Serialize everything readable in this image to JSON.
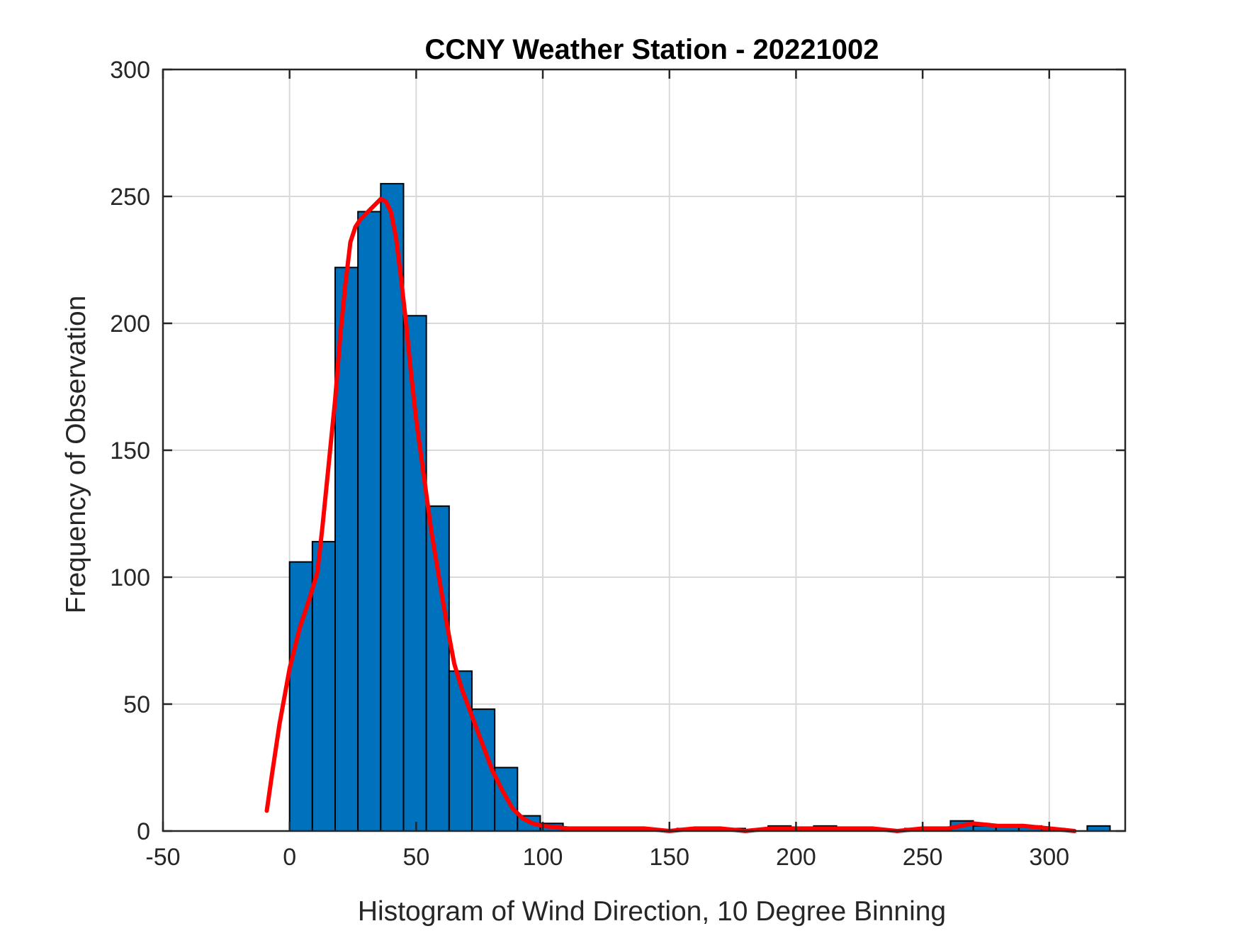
{
  "chart_data": {
    "type": "bar",
    "title": "CCNY Weather Station - 20221002",
    "xlabel": "Histogram of Wind Direction, 10 Degree Binning",
    "ylabel": "Frequency of Observation",
    "xlim": [
      -50,
      330
    ],
    "ylim": [
      0,
      300
    ],
    "xticks": [
      -50,
      0,
      50,
      100,
      150,
      200,
      250,
      300
    ],
    "yticks": [
      0,
      50,
      100,
      150,
      200,
      250,
      300
    ],
    "grid": true,
    "bar_color": "#0072BD",
    "bar_edge_color": "#000000",
    "line_color": "#FF0000",
    "bins": [
      {
        "x0": 0,
        "x1": 9,
        "count": 106
      },
      {
        "x0": 9,
        "x1": 18,
        "count": 114
      },
      {
        "x0": 18,
        "x1": 27,
        "count": 222
      },
      {
        "x0": 27,
        "x1": 36,
        "count": 244
      },
      {
        "x0": 36,
        "x1": 45,
        "count": 255
      },
      {
        "x0": 45,
        "x1": 54,
        "count": 203
      },
      {
        "x0": 54,
        "x1": 63,
        "count": 128
      },
      {
        "x0": 63,
        "x1": 72,
        "count": 63
      },
      {
        "x0": 72,
        "x1": 81,
        "count": 48
      },
      {
        "x0": 81,
        "x1": 90,
        "count": 25
      },
      {
        "x0": 90,
        "x1": 99,
        "count": 6
      },
      {
        "x0": 99,
        "x1": 108,
        "count": 3
      },
      {
        "x0": 108,
        "x1": 117,
        "count": 1
      },
      {
        "x0": 117,
        "x1": 126,
        "count": 1
      },
      {
        "x0": 126,
        "x1": 135,
        "count": 1
      },
      {
        "x0": 135,
        "x1": 144,
        "count": 1
      },
      {
        "x0": 144,
        "x1": 153,
        "count": 0
      },
      {
        "x0": 153,
        "x1": 162,
        "count": 1
      },
      {
        "x0": 162,
        "x1": 171,
        "count": 1
      },
      {
        "x0": 171,
        "x1": 180,
        "count": 1
      },
      {
        "x0": 180,
        "x1": 189,
        "count": 0
      },
      {
        "x0": 189,
        "x1": 198,
        "count": 2
      },
      {
        "x0": 198,
        "x1": 207,
        "count": 1
      },
      {
        "x0": 207,
        "x1": 216,
        "count": 2
      },
      {
        "x0": 216,
        "x1": 225,
        "count": 1
      },
      {
        "x0": 225,
        "x1": 234,
        "count": 1
      },
      {
        "x0": 234,
        "x1": 243,
        "count": 0
      },
      {
        "x0": 243,
        "x1": 252,
        "count": 1
      },
      {
        "x0": 252,
        "x1": 261,
        "count": 1
      },
      {
        "x0": 261,
        "x1": 270,
        "count": 4
      },
      {
        "x0": 270,
        "x1": 279,
        "count": 2
      },
      {
        "x0": 279,
        "x1": 288,
        "count": 2
      },
      {
        "x0": 288,
        "x1": 297,
        "count": 2
      },
      {
        "x0": 297,
        "x1": 306,
        "count": 1
      },
      {
        "x0": 306,
        "x1": 315,
        "count": 0
      },
      {
        "x0": 315,
        "x1": 324,
        "count": 2
      }
    ],
    "curve": {
      "x": [
        -9,
        -7,
        -4,
        0,
        4,
        8,
        11,
        13,
        15,
        18,
        20,
        22,
        24,
        26,
        28,
        30,
        32,
        34,
        36,
        38,
        40,
        42,
        44,
        46,
        48,
        50,
        53,
        56,
        59,
        62,
        65,
        68,
        71,
        74,
        77,
        80,
        84,
        88,
        92,
        96,
        100,
        105,
        110,
        115,
        120,
        130,
        140,
        150,
        160,
        170,
        180,
        190,
        200,
        210,
        220,
        230,
        240,
        250,
        260,
        265,
        270,
        280,
        290,
        300,
        310
      ],
      "y": [
        8,
        22,
        42,
        64,
        80,
        92,
        102,
        120,
        140,
        170,
        195,
        215,
        232,
        238,
        241,
        243,
        245,
        247,
        249,
        248,
        244,
        234,
        218,
        200,
        180,
        162,
        140,
        118,
        100,
        82,
        66,
        56,
        48,
        40,
        32,
        24,
        16,
        9,
        5,
        3,
        2,
        1.5,
        1,
        1,
        1,
        1,
        1,
        0,
        1,
        1,
        0,
        1,
        1,
        1,
        1,
        1,
        0,
        1,
        1,
        2,
        3,
        2,
        2,
        1,
        0
      ]
    }
  }
}
